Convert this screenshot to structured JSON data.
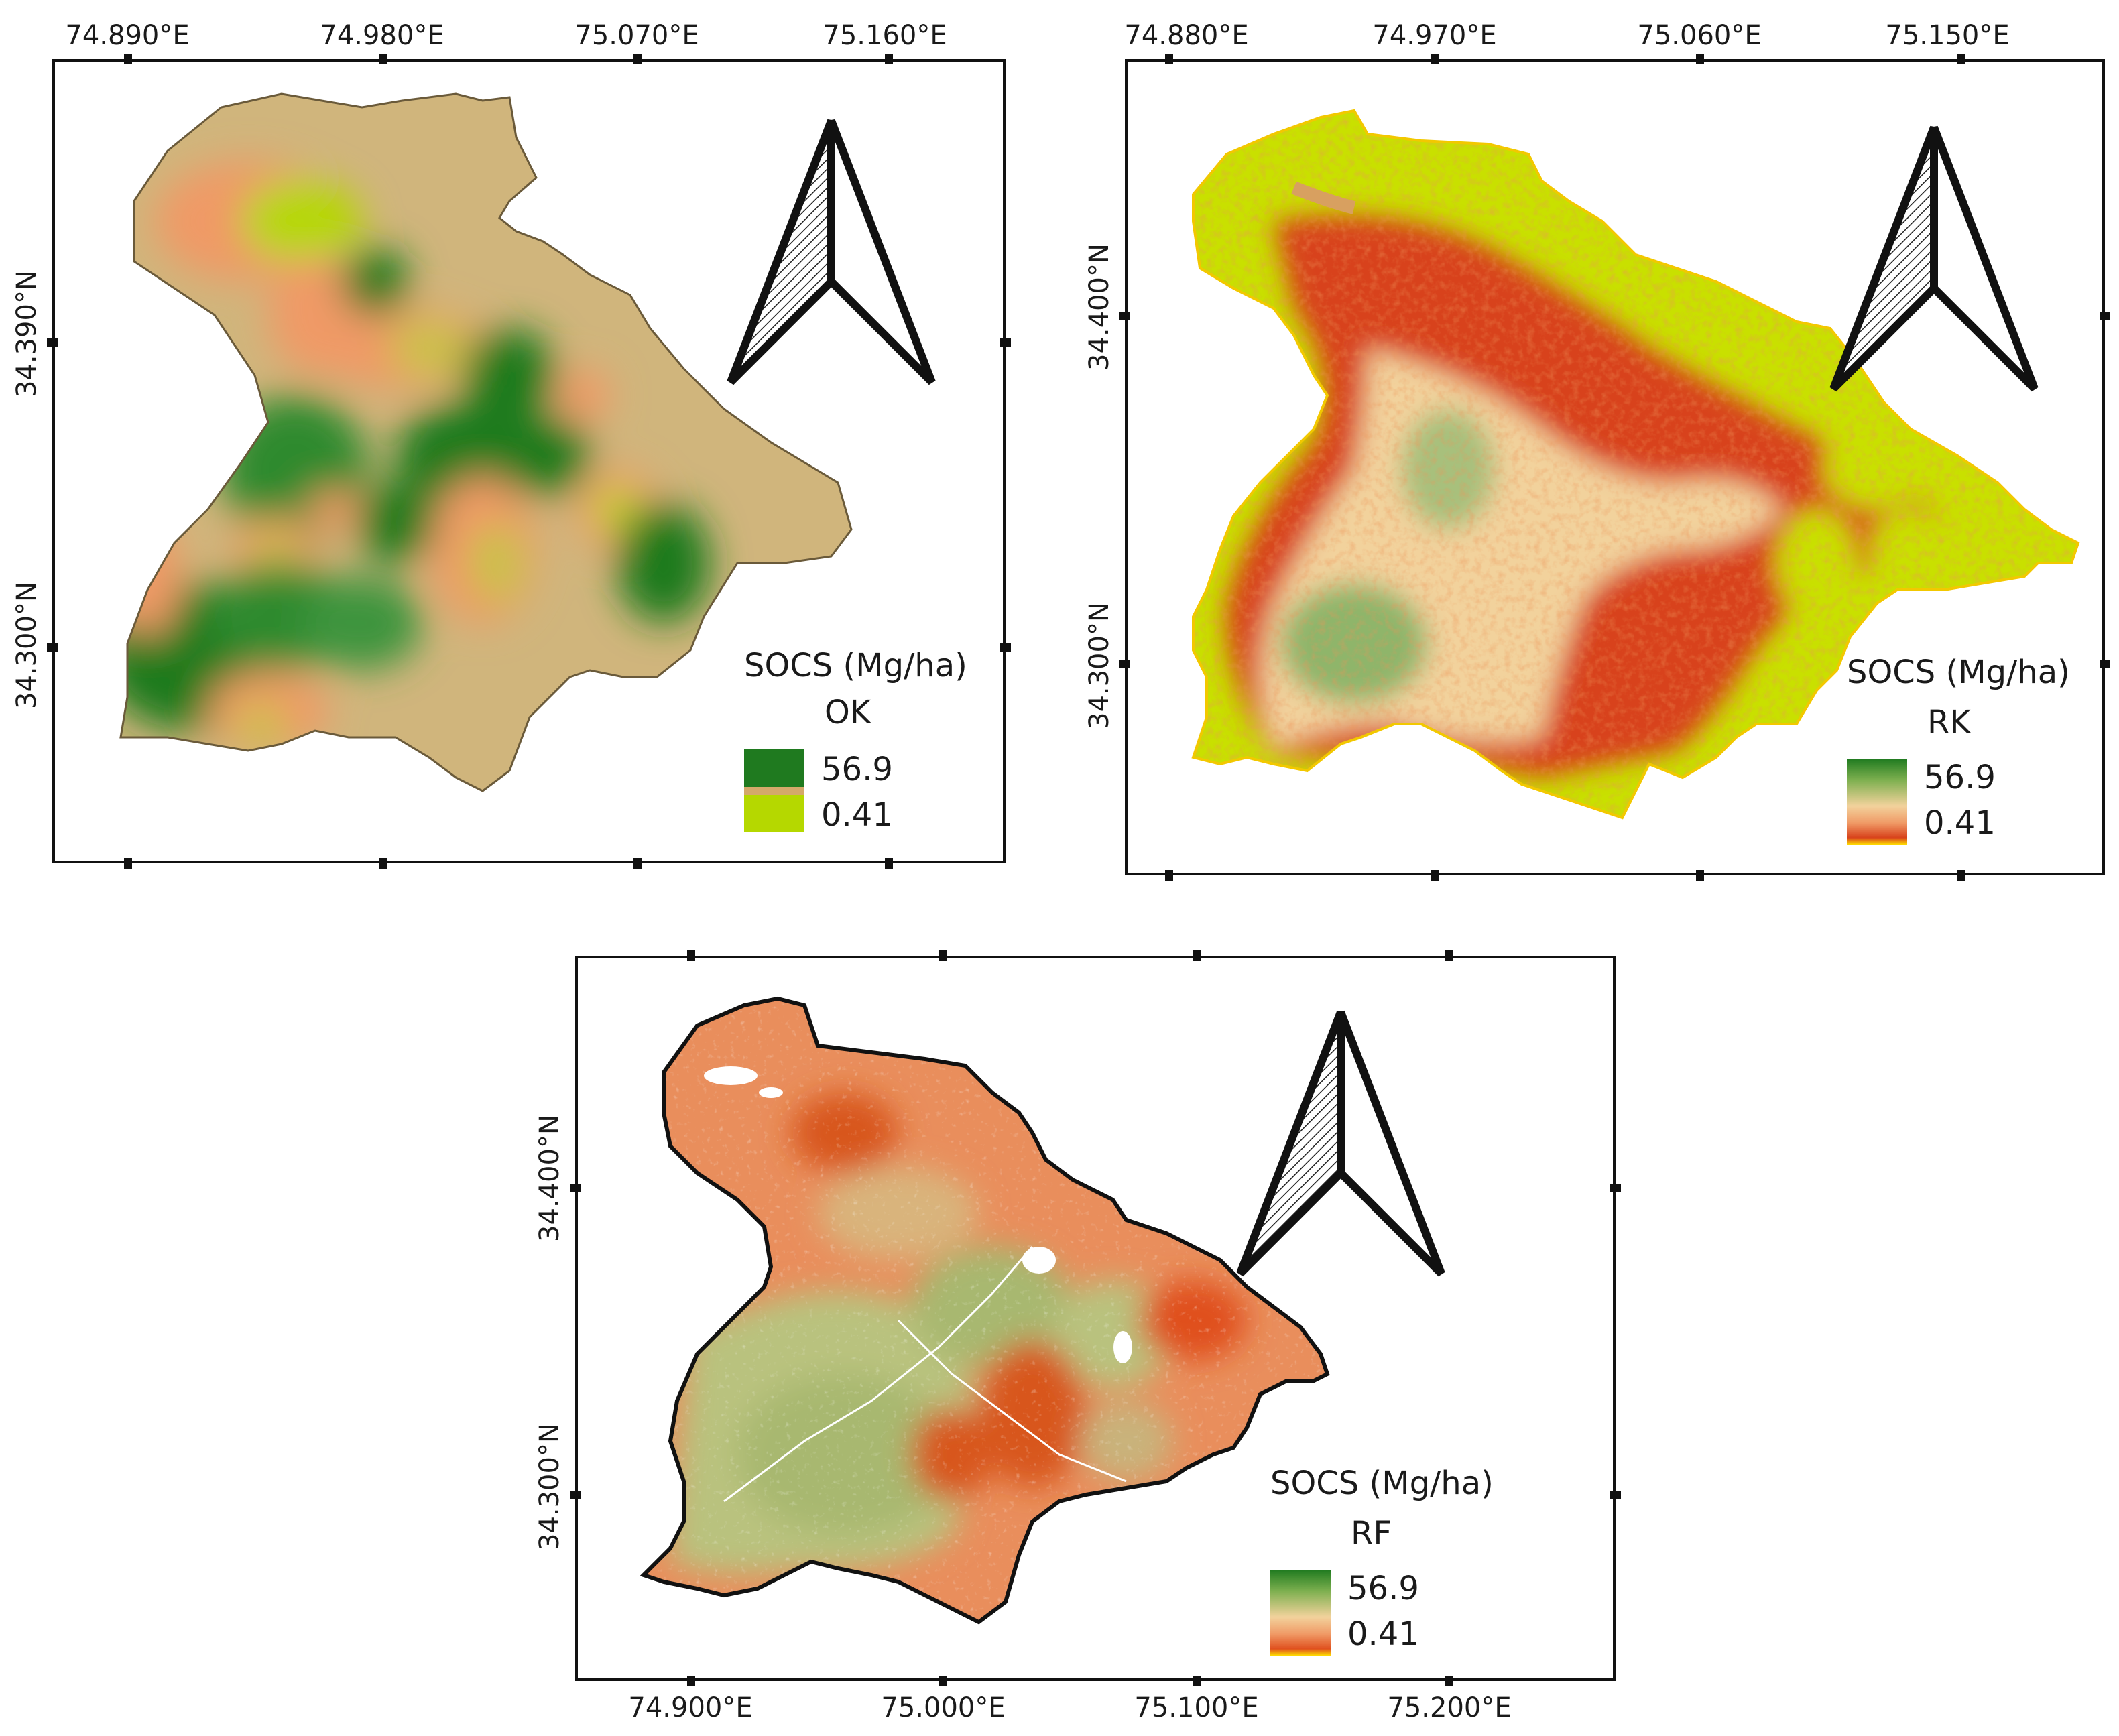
{
  "panels": [
    {
      "method": "OK",
      "legend_title": "SOCS (Mg/ha)",
      "legend_max": "56.9",
      "legend_min": "0.41",
      "lon_labels": [
        "74.890°E",
        "74.980°E",
        "75.070°E",
        "75.160°E"
      ],
      "lat_labels": [
        "34.390°N",
        "34.300°N"
      ],
      "colors": {
        "high": "#1f7a1f",
        "mid": "#d4a96a",
        "low": "#b5d800",
        "base": "#d0b57c",
        "edge": "#f09a66"
      }
    },
    {
      "method": "RK",
      "legend_title": "SOCS (Mg/ha)",
      "legend_max": "56.9",
      "legend_min": "0.41",
      "lon_labels": [
        "74.880°E",
        "74.970°E",
        "75.060°E",
        "75.150°E"
      ],
      "lat_labels": [
        "34.400°N",
        "34.300°N"
      ],
      "colors": {
        "high": "#1f7a1f",
        "mid": "#f2d29c",
        "low": "#d8431c",
        "base": "#c9e000",
        "edge": "#ffdd00"
      }
    },
    {
      "method": "RF",
      "legend_title": "SOCS (Mg/ha)",
      "legend_max": "56.9",
      "legend_min": "0.41",
      "lon_labels": [
        "74.900°E",
        "75.000°E",
        "75.100°E",
        "75.200°E"
      ],
      "lat_labels": [
        "34.400°N",
        "34.300°N"
      ],
      "colors": {
        "high": "#1f7a1f",
        "mid": "#f2d29c",
        "low": "#e0501e",
        "base": "#e98e5c",
        "edge": "#ffdd00"
      }
    }
  ]
}
